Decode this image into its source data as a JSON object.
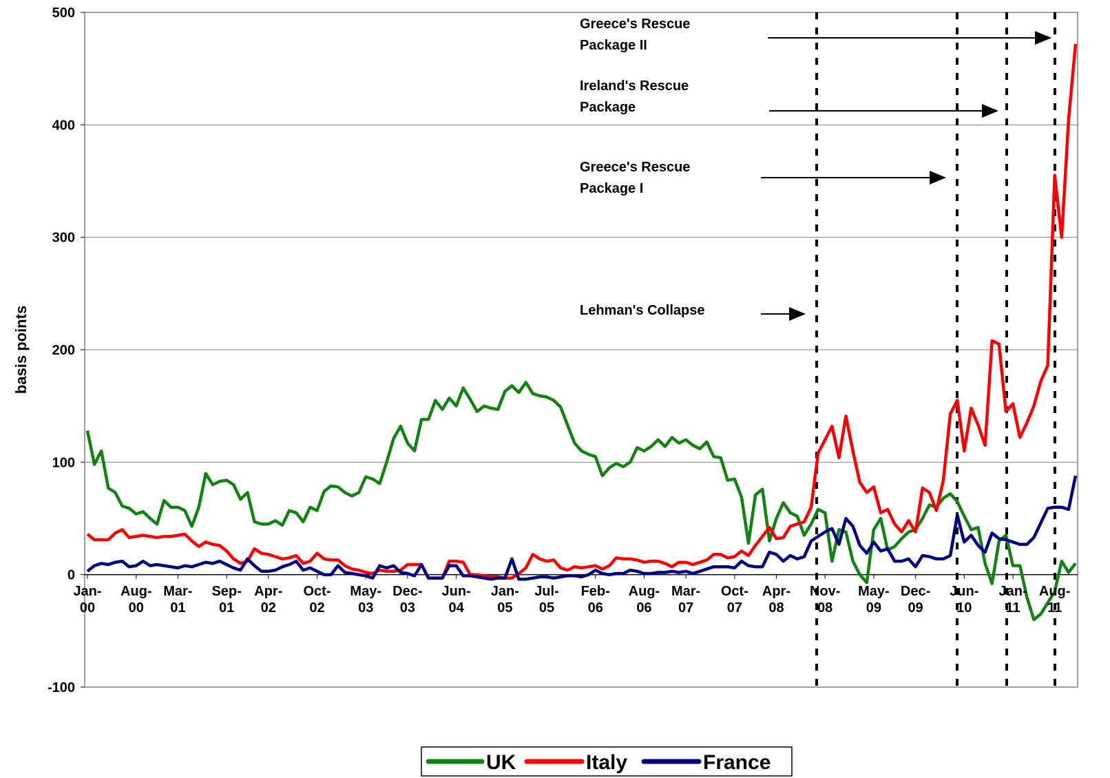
{
  "chart_data": {
    "type": "line",
    "y_label": "basis points",
    "ylim": [
      -100,
      500
    ],
    "yticks": [
      -100,
      0,
      100,
      200,
      300,
      400,
      500
    ],
    "grid": true,
    "legend": "bottom",
    "categories": [
      "Jan-00",
      null,
      null,
      null,
      null,
      null,
      null,
      "Aug-00",
      null,
      null,
      null,
      null,
      null,
      "Mar-01",
      null,
      null,
      null,
      null,
      null,
      null,
      "Sep-01",
      null,
      null,
      null,
      null,
      null,
      "Apr-02",
      null,
      null,
      null,
      null,
      null,
      null,
      "Oct-02",
      null,
      null,
      null,
      null,
      null,
      null,
      "May-03",
      null,
      null,
      null,
      null,
      null,
      "Dec-03",
      null,
      null,
      null,
      null,
      null,
      null,
      "Jun-04",
      null,
      null,
      null,
      null,
      null,
      null,
      "Jan-05",
      null,
      null,
      null,
      null,
      null,
      "Jul-05",
      null,
      null,
      null,
      null,
      null,
      null,
      "Feb-06",
      null,
      null,
      null,
      null,
      null,
      null,
      "Aug-06",
      null,
      null,
      null,
      null,
      null,
      "Mar-07",
      null,
      null,
      null,
      null,
      null,
      null,
      "Oct-07",
      null,
      null,
      null,
      null,
      null,
      "Apr-08",
      null,
      null,
      null,
      null,
      null,
      null,
      "Nov-08",
      null,
      null,
      null,
      null,
      null,
      null,
      "May-09",
      null,
      null,
      null,
      null,
      null,
      "Dec-09",
      null,
      null,
      null,
      null,
      null,
      null,
      "Jun-10",
      null,
      null,
      null,
      null,
      null,
      null,
      "Jan-11",
      null,
      null,
      null,
      null,
      null,
      "Aug-11",
      null,
      null,
      null
    ],
    "series": [
      {
        "name": "UK",
        "color": "#128212",
        "values": [
          128,
          98,
          110,
          77,
          73,
          61,
          59,
          54,
          56,
          50,
          45,
          66,
          60,
          60,
          57,
          43,
          60,
          90,
          80,
          83,
          84,
          80,
          67,
          73,
          47,
          45,
          45,
          48,
          44,
          57,
          55,
          47,
          60,
          57,
          74,
          79,
          78,
          73,
          70,
          73,
          87,
          85,
          81,
          100,
          121,
          132,
          117,
          110,
          138,
          138,
          155,
          147,
          157,
          150,
          166,
          156,
          145,
          150,
          148,
          147,
          163,
          168,
          162,
          171,
          161,
          159,
          158,
          155,
          149,
          133,
          117,
          110,
          107,
          105,
          88,
          95,
          99,
          96,
          100,
          113,
          110,
          114,
          120,
          114,
          122,
          117,
          120,
          115,
          112,
          118,
          105,
          104,
          84,
          85,
          69,
          28,
          71,
          76,
          30,
          50,
          64,
          55,
          52,
          35,
          45,
          58,
          55,
          12,
          40,
          38,
          12,
          0,
          -7,
          40,
          50,
          22,
          25,
          32,
          38,
          40,
          50,
          62,
          60,
          68,
          72,
          65,
          52,
          40,
          42,
          10,
          -8,
          30,
          35,
          8,
          8,
          -20,
          -40,
          -35,
          -25,
          -15,
          12,
          2,
          10
        ]
      },
      {
        "name": "Italy",
        "color": "#ff0000",
        "values": [
          36,
          31,
          31,
          31,
          37,
          40,
          33,
          34,
          35,
          34,
          33,
          34,
          34,
          35,
          36,
          30,
          25,
          29,
          27,
          26,
          21,
          14,
          10,
          12,
          23,
          19,
          18,
          16,
          14,
          15,
          17,
          10,
          12,
          19,
          14,
          13,
          13,
          8,
          5,
          4,
          2,
          1,
          4,
          3,
          3,
          4,
          9,
          9,
          9,
          -3,
          -3,
          -3,
          12,
          12,
          11,
          0,
          0,
          -1,
          -2,
          -2,
          -3,
          -3,
          1,
          6,
          18,
          14,
          12,
          13,
          6,
          4,
          7,
          6,
          7,
          8,
          5,
          8,
          15,
          14,
          14,
          13,
          11,
          12,
          12,
          10,
          7,
          11,
          11,
          9,
          11,
          13,
          18,
          18,
          15,
          16,
          21,
          17,
          26,
          34,
          42,
          32,
          33,
          43,
          45,
          47,
          60,
          108,
          120,
          132,
          104,
          141,
          110,
          82,
          73,
          78,
          55,
          58,
          45,
          38,
          48,
          38,
          77,
          73,
          57,
          84,
          143,
          155,
          110,
          148,
          133,
          115,
          208,
          205,
          145,
          152,
          122,
          135,
          150,
          172,
          186,
          355,
          300,
          405,
          472
        ]
      },
      {
        "name": "France",
        "color": "#000080",
        "values": [
          3,
          8,
          10,
          9,
          11,
          12,
          7,
          8,
          12,
          8,
          9,
          8,
          7,
          6,
          8,
          7,
          9,
          11,
          10,
          12,
          9,
          6,
          4,
          14,
          8,
          3,
          3,
          4,
          7,
          9,
          12,
          4,
          6,
          3,
          0,
          0,
          8,
          2,
          1,
          0,
          -1,
          -3,
          8,
          6,
          8,
          2,
          1,
          -1,
          9,
          -3,
          -3,
          -3,
          8,
          8,
          -1,
          -1,
          -2,
          -3,
          -4,
          -3,
          -3,
          14,
          -4,
          -4,
          -3,
          -2,
          -2,
          -3,
          -2,
          -1,
          -1,
          -2,
          0,
          4,
          1,
          0,
          1,
          1,
          4,
          3,
          1,
          1,
          2,
          2,
          3,
          2,
          3,
          1,
          3,
          5,
          7,
          7,
          7,
          6,
          12,
          8,
          7,
          7,
          20,
          18,
          12,
          17,
          14,
          16,
          30,
          34,
          38,
          41,
          27,
          50,
          43,
          26,
          19,
          29,
          21,
          23,
          12,
          12,
          14,
          7,
          17,
          16,
          14,
          14,
          17,
          53,
          29,
          35,
          26,
          20,
          37,
          32,
          31,
          29,
          27,
          27,
          33,
          46,
          59,
          60,
          60,
          58,
          88
        ]
      }
    ],
    "annotations": [
      "Greece's Rescue Package II",
      "Ireland's Rescue Package",
      "Greece's Rescue Package I",
      "Lehman's Collapse"
    ]
  }
}
